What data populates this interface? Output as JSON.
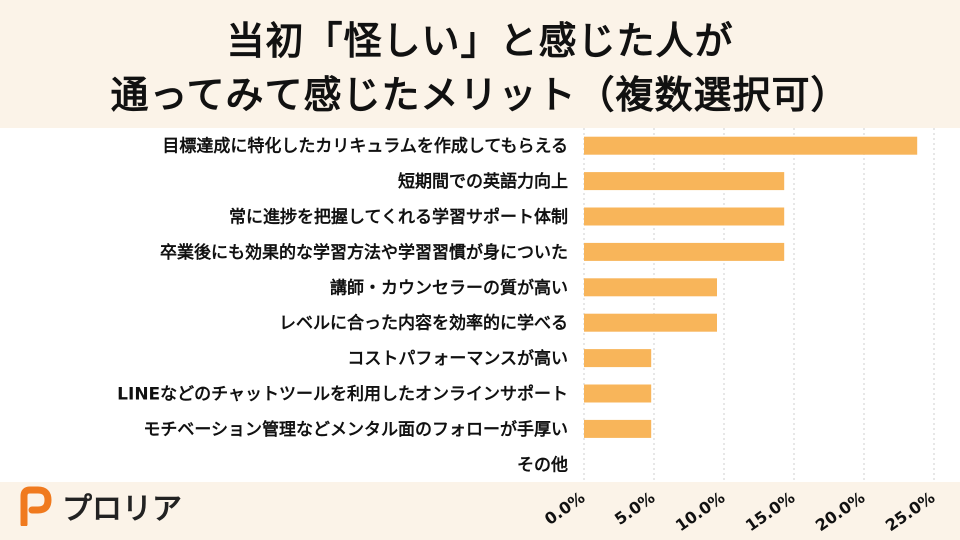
{
  "title_line1": "当初「怪しい」と感じた人が",
  "title_line2": "通ってみて感じたメリット（複数選択可）",
  "brand": {
    "name": "プロリア",
    "color": "#f07a1e"
  },
  "chart_data": {
    "type": "bar",
    "orientation": "horizontal",
    "bar_color": "#f8b55a",
    "categories": [
      "目標達成に特化したカリキュラムを作成してもらえる",
      "短期間での英語力向上",
      "常に進捗を把握してくれる学習サポート体制",
      "卒業後にも効果的な学習方法や学習習慣が身についた",
      "講師・カウンセラーの質が高い",
      "レベルに合った内容を効率的に学べる",
      "コストパフォーマンスが高い",
      "LINEなどのチャットツールを利用したオンラインサポート",
      "モチベーション管理などメンタル面のフォローが手厚い",
      "その他"
    ],
    "values": [
      23.8,
      14.3,
      14.3,
      14.3,
      9.5,
      9.5,
      4.8,
      4.8,
      4.8,
      0
    ],
    "xlim": [
      0,
      25
    ],
    "xticks": [
      "0.0%",
      "5.0%",
      "10.0%",
      "15.0%",
      "20.0%",
      "25.0%"
    ],
    "grid": "vertical-dotted"
  }
}
